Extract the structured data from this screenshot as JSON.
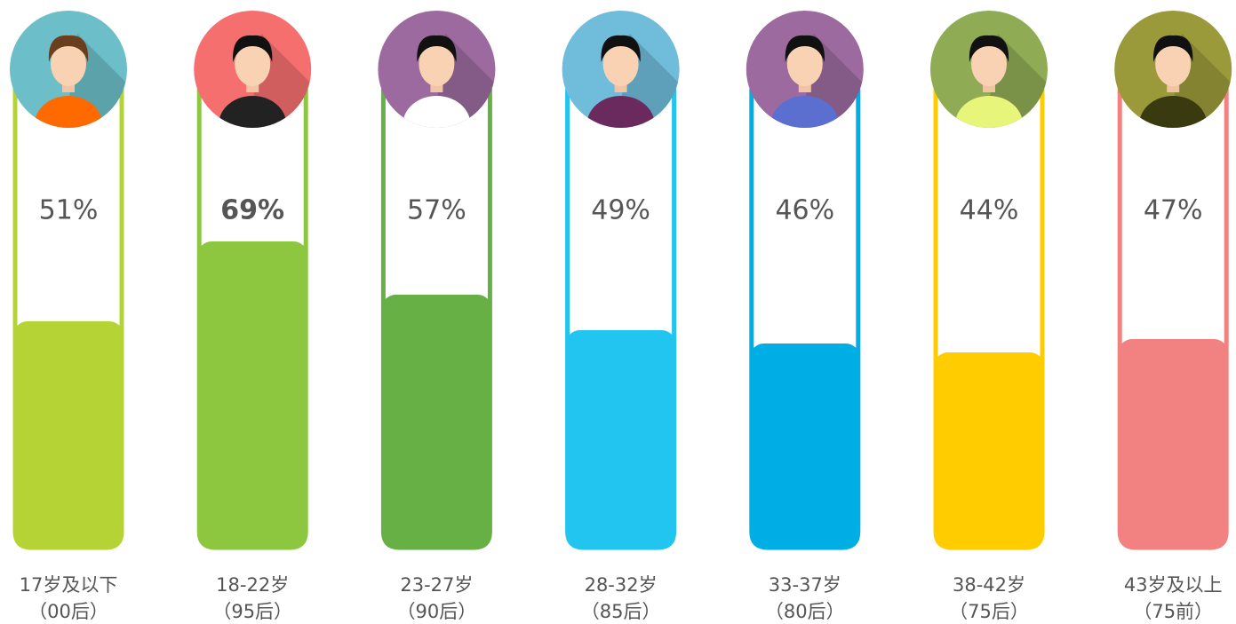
{
  "chart_data": {
    "type": "bar",
    "categories": [
      "17岁及以下",
      "18-22岁",
      "23-27岁",
      "28-32岁",
      "33-37岁",
      "38-42岁",
      "43岁及以上"
    ],
    "generations": [
      "（00后）",
      "（95后）",
      "（90后）",
      "（85后）",
      "（80后）",
      "（75后）",
      "（75前）"
    ],
    "values": [
      51,
      69,
      57,
      49,
      46,
      44,
      47
    ],
    "value_labels": [
      "51%",
      "69%",
      "57%",
      "49%",
      "46%",
      "44%",
      "47%"
    ],
    "colors": [
      "#b5d334",
      "#8dc63f",
      "#66b046",
      "#21c5f0",
      "#00aee6",
      "#ffcc00",
      "#f28282"
    ],
    "avatar_colors": [
      "#6cbfc8",
      "#f56f6f",
      "#9c6a9e",
      "#6fbcdb",
      "#9c6a9e",
      "#8fac55",
      "#9a9a3a"
    ],
    "highlight": 1,
    "ylim": [
      0,
      100
    ]
  }
}
